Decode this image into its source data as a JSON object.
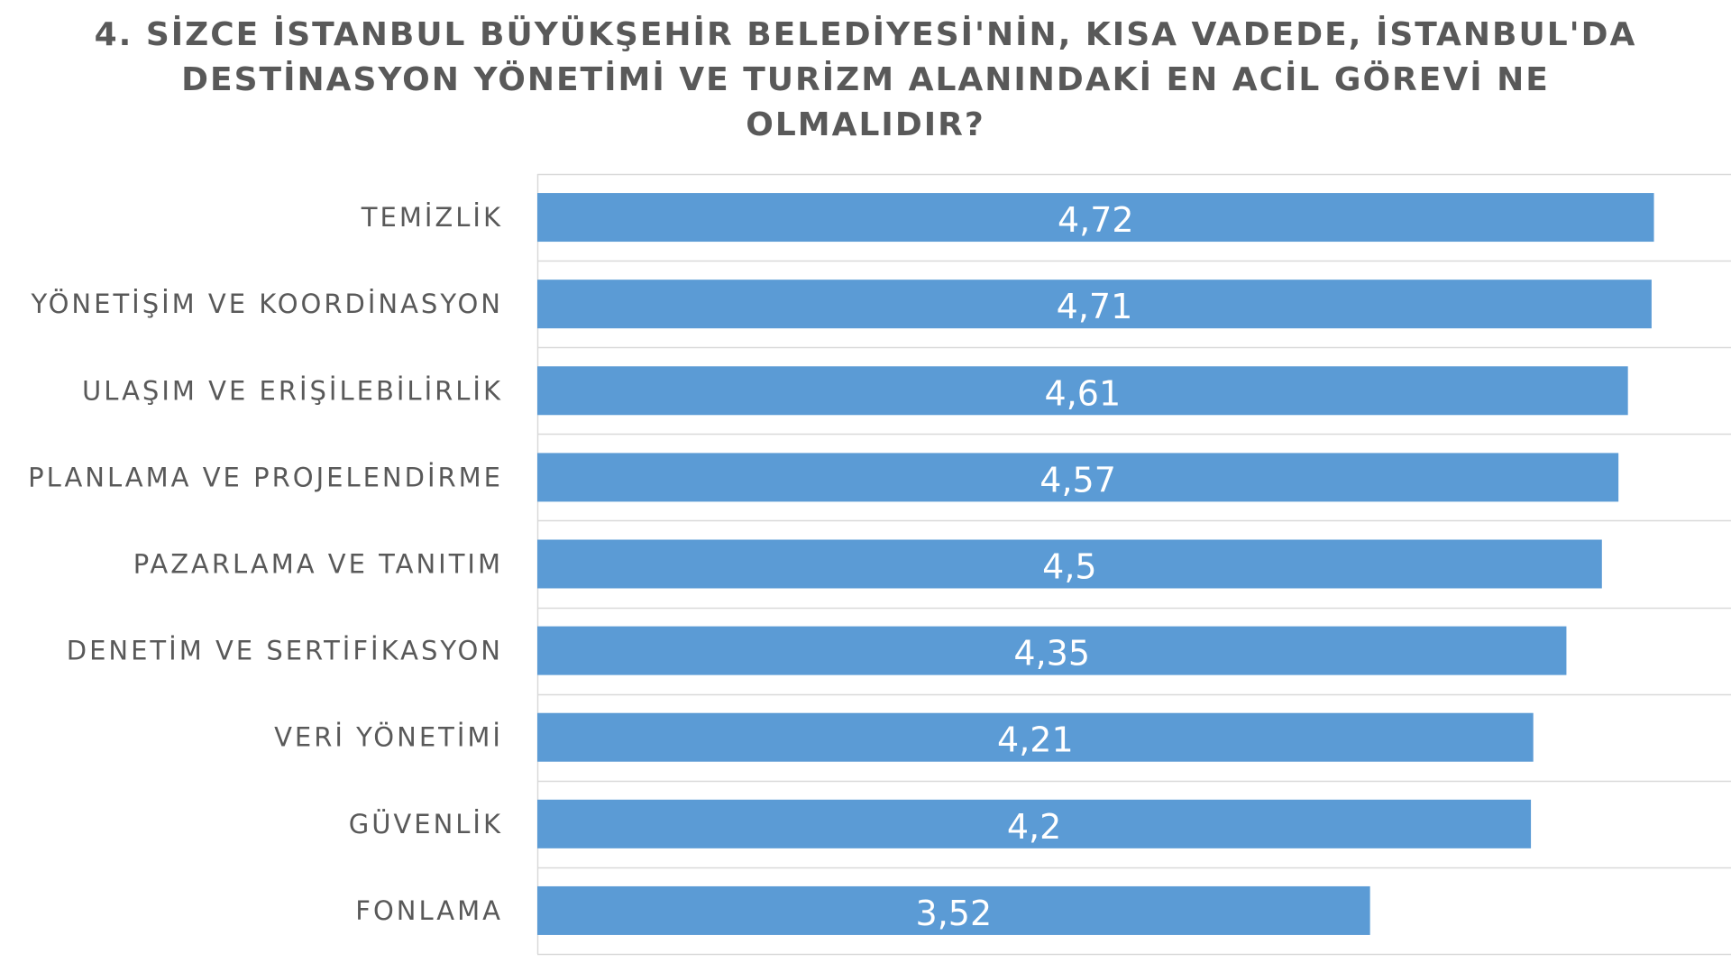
{
  "chart_data": {
    "type": "bar",
    "orientation": "horizontal",
    "title_lines": [
      "4. SİZCE İSTANBUL BÜYÜKŞEHİR BELEDİYESİ'NİN, KISA VADEDE, İSTANBUL'DA",
      "DESTİNASYON YÖNETİMİ VE TURİZM ALANINDAKİ EN ACİL GÖREVİ NE",
      "OLMALIDIR?"
    ],
    "categories": [
      "TEMİZLİK",
      "YÖNETİŞİM VE KOORDİNASYON",
      "ULAŞIM VE ERİŞİLEBİLİRLİK",
      "PLANLAMA VE PROJELENDİRME",
      "PAZARLAMA VE TANITIM",
      "DENETİM VE SERTİFİKASYON",
      "VERİ YÖNETİMİ",
      "GÜVENLİK",
      "FONLAMA"
    ],
    "values": [
      4.72,
      4.71,
      4.61,
      4.57,
      4.5,
      4.35,
      4.21,
      4.2,
      3.52
    ],
    "data_labels": [
      "4,72",
      "4,71",
      "4,61",
      "4,57",
      "4,5",
      "4,35",
      "4,21",
      "4,2",
      "3,52"
    ],
    "xlim": [
      0,
      5
    ],
    "grid": true,
    "legend": "none",
    "colors": {
      "bar": "#5B9BD5",
      "gridline": "#D9D9D9",
      "text": "#595959",
      "bar_label": "#FFFFFF"
    }
  }
}
